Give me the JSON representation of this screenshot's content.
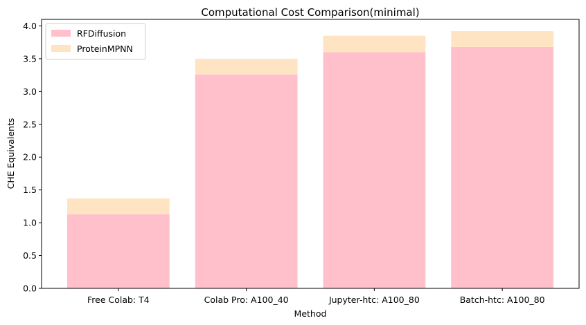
{
  "chart_data": {
    "type": "bar",
    "stacked": true,
    "title": "Computational Cost Comparison(minimal)",
    "xlabel": "Method",
    "ylabel": "CHE Equivalents",
    "ylim": [
      0,
      4.1
    ],
    "yticks": [
      "0.0",
      "0.5",
      "1.0",
      "1.5",
      "2.0",
      "2.5",
      "3.0",
      "3.5",
      "4.0"
    ],
    "categories": [
      "Free Colab: T4",
      "Colab Pro: A100_40",
      "Jupyter-htc: A100_80",
      "Batch-htc: A100_80"
    ],
    "series": [
      {
        "name": "RFDiffusion",
        "color": "#ffc0cb",
        "values": [
          1.13,
          3.26,
          3.6,
          3.68
        ]
      },
      {
        "name": "ProteinMPNN",
        "color": "#ffe4c4",
        "values": [
          0.24,
          0.24,
          0.25,
          0.24
        ]
      }
    ],
    "grid": false,
    "legend_position": "top-left"
  }
}
